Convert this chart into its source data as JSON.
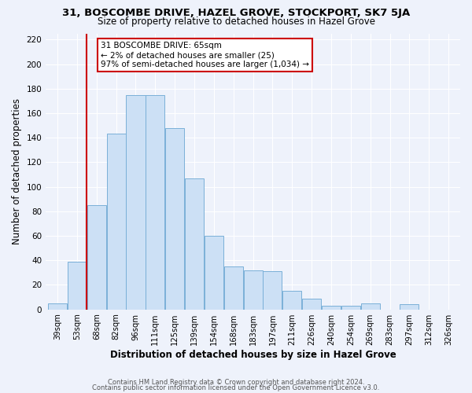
{
  "title1": "31, BOSCOMBE DRIVE, HAZEL GROVE, STOCKPORT, SK7 5JA",
  "title2": "Size of property relative to detached houses in Hazel Grove",
  "xlabel": "Distribution of detached houses by size in Hazel Grove",
  "ylabel": "Number of detached properties",
  "bin_labels": [
    "39sqm",
    "53sqm",
    "68sqm",
    "82sqm",
    "96sqm",
    "111sqm",
    "125sqm",
    "139sqm",
    "154sqm",
    "168sqm",
    "183sqm",
    "197sqm",
    "211sqm",
    "226sqm",
    "240sqm",
    "254sqm",
    "269sqm",
    "283sqm",
    "297sqm",
    "312sqm",
    "326sqm"
  ],
  "bar_values": [
    5,
    39,
    85,
    143,
    175,
    175,
    148,
    107,
    60,
    35,
    32,
    31,
    15,
    9,
    3,
    3,
    5,
    0,
    4,
    0,
    0
  ],
  "bar_color": "#cce0f5",
  "bar_edge_color": "#7ab0d8",
  "vline_color": "#cc0000",
  "annotation_title": "31 BOSCOMBE DRIVE: 65sqm",
  "annotation_line1": "← 2% of detached houses are smaller (25)",
  "annotation_line2": "97% of semi-detached houses are larger (1,034) →",
  "annotation_box_color": "white",
  "annotation_box_edge_color": "#cc0000",
  "ylim": [
    0,
    225
  ],
  "yticks": [
    0,
    20,
    40,
    60,
    80,
    100,
    120,
    140,
    160,
    180,
    200,
    220
  ],
  "footer1": "Contains HM Land Registry data © Crown copyright and database right 2024.",
  "footer2": "Contains public sector information licensed under the Open Government Licence v3.0.",
  "background_color": "#eef2fb",
  "grid_color": "#ffffff",
  "title1_fontsize": 9.5,
  "title2_fontsize": 8.5
}
